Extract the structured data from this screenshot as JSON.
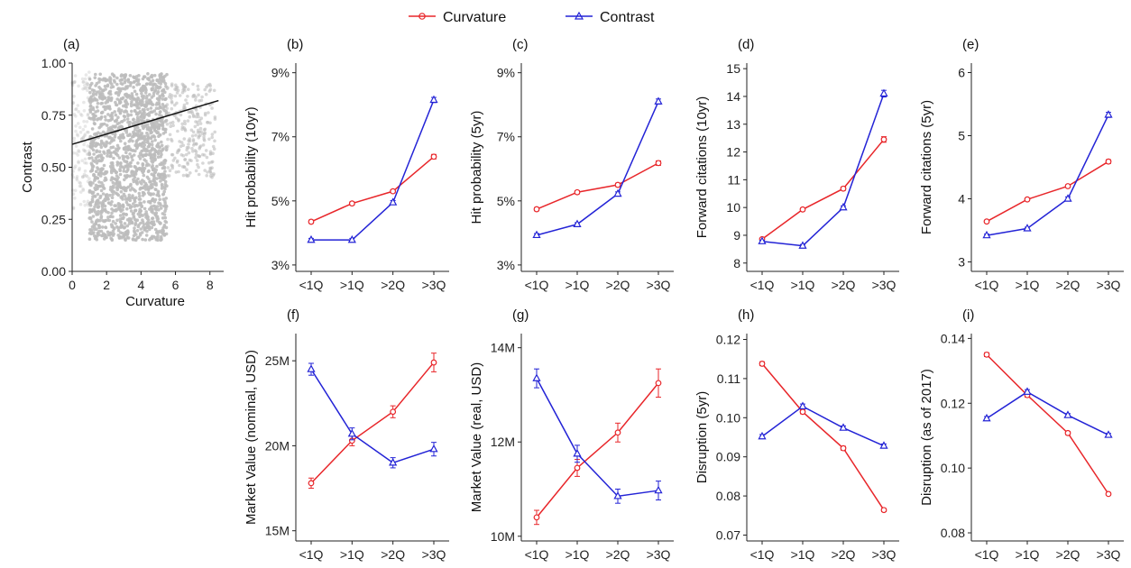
{
  "colors": {
    "curvature": "#e8262a",
    "contrast": "#2323d6",
    "scatter": "#bdbdbd",
    "fit": "#111111"
  },
  "legend": {
    "placement": "top-center",
    "items": [
      "Curvature",
      "Contrast"
    ]
  },
  "chart_data": [
    {
      "id": "a",
      "type": "scatter",
      "letter": "(a)",
      "xlabel": "Curvature",
      "ylabel": "Contrast",
      "xlim": [
        0,
        8.8
      ],
      "ylim": [
        0,
        1.0
      ],
      "xticks": [
        0,
        2,
        4,
        6,
        8
      ],
      "xtick_labels": [
        "0",
        "2",
        "4",
        "6",
        "8"
      ],
      "yticks": [
        0,
        0.25,
        0.5,
        0.75,
        1.0
      ],
      "ytick_labels": [
        "0.00",
        "0.25",
        "0.50",
        "0.75",
        "1.00"
      ],
      "fit_line": {
        "x": [
          0,
          8.5
        ],
        "y": [
          0.61,
          0.82
        ]
      },
      "point_cloud": {
        "main_x": [
          1.0,
          5.5
        ],
        "main_y": [
          0.15,
          0.95
        ],
        "tail_x": [
          5.5,
          8.3
        ],
        "tail_y": [
          0.45,
          0.9
        ],
        "sparse_x": [
          0,
          1.0
        ],
        "sparse_y": [
          0.3,
          0.96
        ]
      }
    },
    {
      "id": "b",
      "type": "line",
      "letter": "(b)",
      "ylabel": "Hit probability (10yr)",
      "categories": [
        "<1Q",
        ">1Q",
        ">2Q",
        ">3Q"
      ],
      "ylim": [
        2.8,
        9.3
      ],
      "yticks": [
        3,
        5,
        7,
        9
      ],
      "ytick_labels": [
        "3%",
        "5%",
        "7%",
        "9%"
      ],
      "series": [
        {
          "name": "Curvature",
          "values": [
            4.35,
            4.92,
            5.3,
            6.38
          ],
          "err": [
            0.05,
            0.05,
            0.05,
            0.07
          ]
        },
        {
          "name": "Contrast",
          "values": [
            3.78,
            3.78,
            4.95,
            8.15
          ],
          "err": [
            0.05,
            0.05,
            0.06,
            0.08
          ]
        }
      ]
    },
    {
      "id": "c",
      "type": "line",
      "letter": "(c)",
      "ylabel": "Hit probability (5yr)",
      "categories": [
        "<1Q",
        ">1Q",
        ">2Q",
        ">3Q"
      ],
      "ylim": [
        2.8,
        9.3
      ],
      "yticks": [
        3,
        5,
        7,
        9
      ],
      "ytick_labels": [
        "3%",
        "5%",
        "7%",
        "9%"
      ],
      "series": [
        {
          "name": "Curvature",
          "values": [
            4.74,
            5.27,
            5.5,
            6.18
          ],
          "err": [
            0.05,
            0.05,
            0.05,
            0.07
          ]
        },
        {
          "name": "Contrast",
          "values": [
            3.93,
            4.27,
            5.22,
            8.1
          ],
          "err": [
            0.05,
            0.05,
            0.06,
            0.08
          ]
        }
      ]
    },
    {
      "id": "d",
      "type": "line",
      "letter": "(d)",
      "ylabel": "Forward citations (10yr)",
      "categories": [
        "<1Q",
        ">1Q",
        ">2Q",
        ">3Q"
      ],
      "ylim": [
        7.7,
        15.2
      ],
      "yticks": [
        8,
        9,
        10,
        11,
        12,
        13,
        14,
        15
      ],
      "ytick_labels": [
        "8",
        "9",
        "10",
        "11",
        "12",
        "13",
        "14",
        "15"
      ],
      "series": [
        {
          "name": "Curvature",
          "values": [
            8.86,
            9.93,
            10.68,
            12.45
          ],
          "err": [
            0.04,
            0.05,
            0.06,
            0.1
          ]
        },
        {
          "name": "Contrast",
          "values": [
            8.78,
            8.62,
            10.0,
            14.1
          ],
          "err": [
            0.04,
            0.05,
            0.06,
            0.12
          ]
        }
      ]
    },
    {
      "id": "e",
      "type": "line",
      "letter": "(e)",
      "ylabel": "Forward citations (5yr)",
      "categories": [
        "<1Q",
        ">1Q",
        ">2Q",
        ">3Q"
      ],
      "ylim": [
        2.85,
        6.15
      ],
      "yticks": [
        3,
        4,
        5,
        6
      ],
      "ytick_labels": [
        "3",
        "4",
        "5",
        "6"
      ],
      "series": [
        {
          "name": "Curvature",
          "values": [
            3.64,
            3.99,
            4.2,
            4.59
          ],
          "err": [
            0.02,
            0.02,
            0.02,
            0.03
          ]
        },
        {
          "name": "Contrast",
          "values": [
            3.42,
            3.53,
            4.0,
            5.33
          ],
          "err": [
            0.02,
            0.02,
            0.03,
            0.04
          ]
        }
      ]
    },
    {
      "id": "f",
      "type": "line",
      "letter": "(f)",
      "ylabel": "Market Value (nominal, USD)",
      "categories": [
        "<1Q",
        ">1Q",
        ">2Q",
        ">3Q"
      ],
      "ylim": [
        14.4,
        26.6
      ],
      "yticks": [
        15,
        20,
        25
      ],
      "ytick_labels": [
        "15M",
        "20M",
        "25M"
      ],
      "series": [
        {
          "name": "Curvature",
          "values": [
            17.8,
            20.3,
            22.0,
            24.9
          ],
          "err": [
            0.3,
            0.3,
            0.35,
            0.55
          ]
        },
        {
          "name": "Contrast",
          "values": [
            24.5,
            20.7,
            19.0,
            19.8
          ],
          "err": [
            0.35,
            0.35,
            0.3,
            0.4
          ]
        }
      ]
    },
    {
      "id": "g",
      "type": "line",
      "letter": "(g)",
      "ylabel": "Market Value (real, USD)",
      "categories": [
        "<1Q",
        ">1Q",
        ">2Q",
        ">3Q"
      ],
      "ylim": [
        9.9,
        14.3
      ],
      "yticks": [
        10,
        12,
        14
      ],
      "ytick_labels": [
        "10M",
        "12M",
        "14M"
      ],
      "series": [
        {
          "name": "Curvature",
          "values": [
            10.4,
            11.45,
            12.2,
            13.25
          ],
          "err": [
            0.15,
            0.18,
            0.2,
            0.3
          ]
        },
        {
          "name": "Contrast",
          "values": [
            13.35,
            11.75,
            10.85,
            10.97
          ],
          "err": [
            0.2,
            0.18,
            0.15,
            0.2
          ]
        }
      ]
    },
    {
      "id": "h",
      "type": "line",
      "letter": "(h)",
      "ylabel": "Disruption (5yr)",
      "categories": [
        "<1Q",
        ">1Q",
        ">2Q",
        ">3Q"
      ],
      "ylim": [
        0.0685,
        0.1215
      ],
      "yticks": [
        0.07,
        0.08,
        0.09,
        0.1,
        0.11,
        0.12
      ],
      "ytick_labels": [
        "0.07",
        "0.08",
        "0.09",
        "0.10",
        "0.11",
        "0.12"
      ],
      "series": [
        {
          "name": "Curvature",
          "values": [
            0.1138,
            0.1015,
            0.0922,
            0.0764
          ],
          "err": [
            0.0005,
            0.0005,
            0.0005,
            0.0004
          ]
        },
        {
          "name": "Contrast",
          "values": [
            0.0952,
            0.1029,
            0.0974,
            0.0928
          ],
          "err": [
            0.0005,
            0.0006,
            0.0005,
            0.0005
          ]
        }
      ]
    },
    {
      "id": "i",
      "type": "line",
      "letter": "(i)",
      "ylabel": "Disruption (as of 2017)",
      "categories": [
        "<1Q",
        ">1Q",
        ">2Q",
        ">3Q"
      ],
      "ylim": [
        0.0775,
        0.1415
      ],
      "yticks": [
        0.08,
        0.1,
        0.12,
        0.14
      ],
      "ytick_labels": [
        "0.08",
        "0.10",
        "0.12",
        "0.14"
      ],
      "series": [
        {
          "name": "Curvature",
          "values": [
            0.135,
            0.1225,
            0.1108,
            0.092
          ],
          "err": [
            0.0006,
            0.0006,
            0.0005,
            0.0004
          ]
        },
        {
          "name": "Contrast",
          "values": [
            0.1153,
            0.1235,
            0.1163,
            0.1102
          ],
          "err": [
            0.0006,
            0.0007,
            0.0005,
            0.0005
          ]
        }
      ]
    }
  ]
}
